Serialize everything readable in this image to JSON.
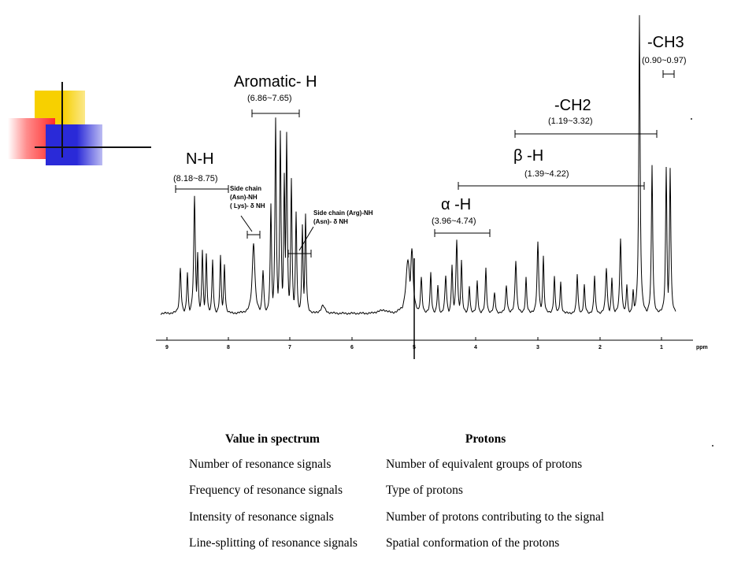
{
  "spectrum": {
    "regions": [
      {
        "id": "nh",
        "name": "N-H",
        "range": "8.18~8.75"
      },
      {
        "id": "aromatic",
        "name": "Aromatic- H",
        "range": "6.86~7.65"
      },
      {
        "id": "ch2",
        "name": "-CH2",
        "range": "1.19~3.32"
      },
      {
        "id": "ch3",
        "name": "-CH3",
        "range": "0.90~0.97"
      },
      {
        "id": "beta",
        "name": "β -H",
        "range": "1.39~4.22"
      },
      {
        "id": "alpha",
        "name": "α -H",
        "range": "3.96~4.74"
      }
    ],
    "annotation_sidechain_1": [
      "Side chain",
      "(Asn)-NH",
      "( Lys)- δ NH"
    ],
    "annotation_sidechain_2": [
      "Side chain (Arg)-NH",
      "(Asn)- δ NH"
    ],
    "axis_ticks": [
      "9",
      "8",
      "7",
      "6",
      "5",
      "4",
      "3",
      "2",
      "1"
    ],
    "axis_unit": "ppm"
  },
  "table": {
    "headers": [
      "Value in spectrum",
      "Protons"
    ],
    "rows": [
      [
        "Number of resonance signals",
        "Number of equivalent groups of protons"
      ],
      [
        "Frequency of resonance signals",
        "Type of protons"
      ],
      [
        "Intensity of resonance signals",
        "Number of protons contributing to the signal"
      ],
      [
        "Line-splitting of resonance signals",
        "Spatial conformation of the protons"
      ]
    ]
  },
  "colors": {
    "yellow": "#f7d000",
    "red": "#ff2b2b",
    "blue": "#2a2ad8"
  }
}
